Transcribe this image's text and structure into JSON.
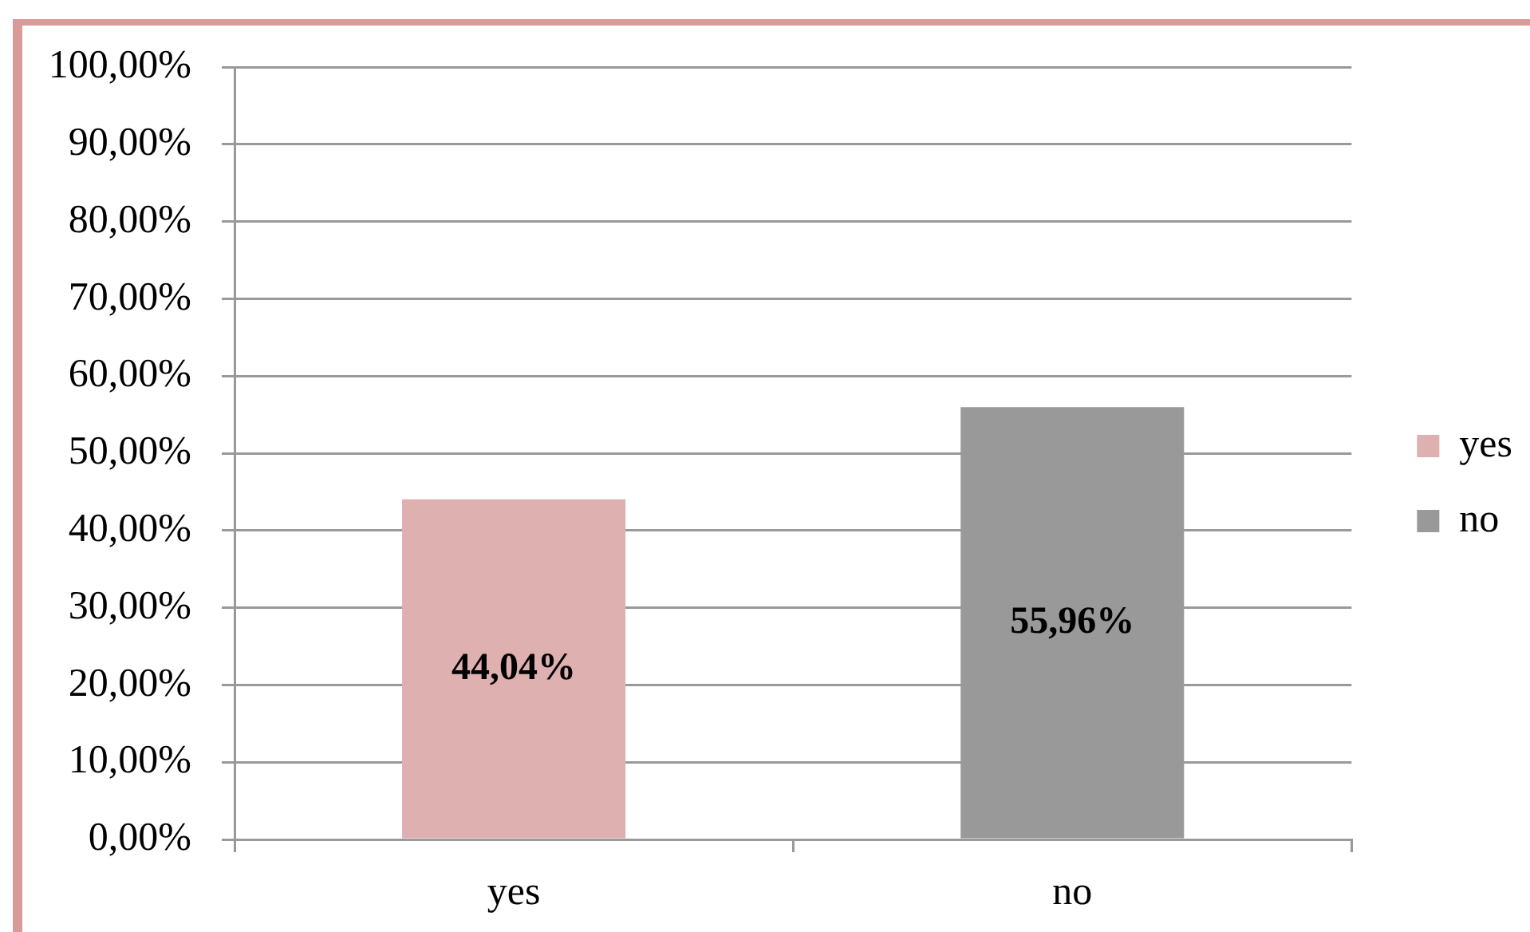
{
  "chart_data": {
    "type": "bar",
    "categories": [
      "yes",
      "no"
    ],
    "series": [
      {
        "name": "yes",
        "color": "#dfb0b0",
        "values": [
          44.04,
          null
        ],
        "value_labels": [
          "44,04%",
          null
        ]
      },
      {
        "name": "no",
        "color": "#999999",
        "values": [
          null,
          55.96
        ],
        "value_labels": [
          null,
          "55,96%"
        ]
      }
    ],
    "ylim": [
      0,
      100
    ],
    "yticks": [
      {
        "value": 0,
        "label": "0,00%"
      },
      {
        "value": 10,
        "label": "10,00%"
      },
      {
        "value": 20,
        "label": "20,00%"
      },
      {
        "value": 30,
        "label": "30,00%"
      },
      {
        "value": 40,
        "label": "40,00%"
      },
      {
        "value": 50,
        "label": "50,00%"
      },
      {
        "value": 60,
        "label": "60,00%"
      },
      {
        "value": 70,
        "label": "70,00%"
      },
      {
        "value": 80,
        "label": "80,00%"
      },
      {
        "value": 90,
        "label": "90,00%"
      },
      {
        "value": 100,
        "label": "100,00%"
      }
    ],
    "grid": "y",
    "legend": "right"
  }
}
